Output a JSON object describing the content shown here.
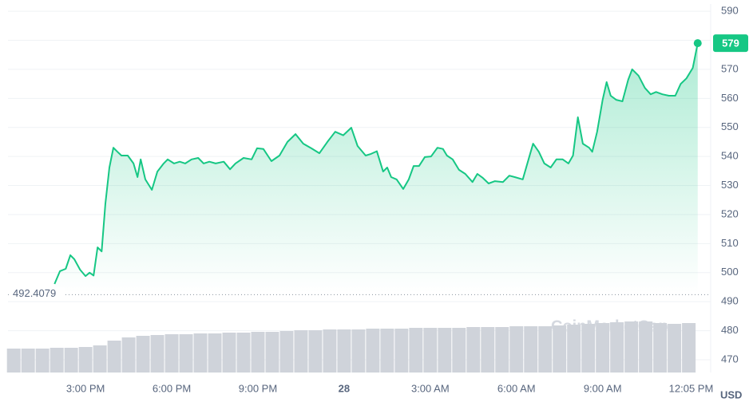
{
  "chart_data": {
    "type": "line",
    "x": [
      -10.08,
      -9.89,
      -9.69,
      -9.53,
      -9.39,
      -9.19,
      -9.0,
      -8.86,
      -8.72,
      -8.58,
      -8.44,
      -8.31,
      -8.17,
      -8.03,
      -7.89,
      -7.75,
      -7.53,
      -7.33,
      -7.19,
      -7.08,
      -6.92,
      -6.69,
      -6.5,
      -6.28,
      -6.14,
      -5.92,
      -5.72,
      -5.53,
      -5.31,
      -5.08,
      -4.89,
      -4.69,
      -4.47,
      -4.19,
      -3.97,
      -3.78,
      -3.5,
      -3.22,
      -3.03,
      -2.81,
      -2.53,
      -2.25,
      -1.97,
      -1.69,
      -1.42,
      -1.14,
      -0.86,
      -0.58,
      -0.31,
      -0.03,
      0.25,
      0.47,
      0.75,
      0.94,
      1.14,
      1.36,
      1.5,
      1.64,
      1.83,
      2.06,
      2.25,
      2.42,
      2.61,
      2.81,
      3.03,
      3.25,
      3.44,
      3.58,
      3.78,
      4.0,
      4.22,
      4.47,
      4.64,
      4.83,
      5.03,
      5.25,
      5.53,
      5.75,
      5.94,
      6.22,
      6.42,
      6.58,
      6.78,
      6.97,
      7.19,
      7.39,
      7.61,
      7.81,
      7.97,
      8.14,
      8.31,
      8.53,
      8.64,
      8.81,
      9.0,
      9.14,
      9.28,
      9.47,
      9.69,
      9.89,
      10.03,
      10.25,
      10.47,
      10.67,
      10.86,
      11.08,
      11.31,
      11.53,
      11.72,
      11.92,
      12.14,
      12.31
    ],
    "series": [
      {
        "color": "#16c784",
        "values": [
          496.1,
          500.5,
          501.3,
          506,
          504.6,
          501,
          498.8,
          500,
          499,
          508.7,
          507.3,
          523.8,
          536.2,
          543,
          541.6,
          540.3,
          540.3,
          537.6,
          532.9,
          539,
          532.1,
          528.5,
          534.8,
          537.6,
          539,
          537.6,
          538.2,
          537.6,
          539,
          539.5,
          537.6,
          538.2,
          537.6,
          538.2,
          535.6,
          537.6,
          539.5,
          539,
          542.8,
          542.6,
          538.4,
          540.3,
          545,
          547.7,
          544.4,
          542.8,
          541.1,
          545,
          548.5,
          547.3,
          549.9,
          543.6,
          540.3,
          540.9,
          541.8,
          534.8,
          536.2,
          532.9,
          532.1,
          528.8,
          532.1,
          536.7,
          536.7,
          539.8,
          540,
          543,
          542.6,
          540.3,
          539,
          535.4,
          534,
          531.2,
          534,
          532.6,
          530.7,
          531.5,
          531.2,
          533.4,
          532.9,
          532.1,
          539,
          544.4,
          541.6,
          537.6,
          536.2,
          539,
          539,
          537.6,
          540.3,
          553.5,
          544.4,
          543,
          541.6,
          548.5,
          559.5,
          565.6,
          560.9,
          559.5,
          559,
          566.4,
          570,
          567.8,
          563.6,
          561.4,
          562.2,
          561.4,
          560.9,
          560.9,
          565,
          566.9,
          570.5,
          579
        ]
      }
    ],
    "xlim": [
      -11.7,
      12.4
    ],
    "ylim": [
      465.6,
      592.5
    ],
    "xticks": [
      {
        "value": -9,
        "label": "3:00 PM"
      },
      {
        "value": -6,
        "label": "6:00 PM"
      },
      {
        "value": -3,
        "label": "9:00 PM"
      },
      {
        "value": 0,
        "label": "28"
      },
      {
        "value": 3,
        "label": "3:00 AM"
      },
      {
        "value": 6,
        "label": "6:00 AM"
      },
      {
        "value": 9,
        "label": "9:00 AM"
      },
      {
        "value": 12.08,
        "label": "12:05 PM"
      }
    ],
    "yticks": [
      470,
      480,
      490,
      500,
      510,
      520,
      530,
      540,
      550,
      560,
      570,
      580,
      590
    ],
    "grid": true,
    "reference_line": {
      "value": 492.4079
    },
    "y_unit": "USD",
    "watermark": "CoinMarketCap",
    "volume": {
      "type": "bar",
      "color": "#cfd3da",
      "ylim": [
        0,
        100
      ],
      "x": [
        -11.5,
        -11,
        -10.5,
        -10,
        -9.5,
        -9,
        -8.5,
        -8,
        -7.5,
        -7,
        -6.5,
        -6,
        -5.5,
        -5,
        -4.5,
        -4,
        -3.5,
        -3,
        -2.5,
        -2,
        -1.5,
        -1,
        -0.5,
        0,
        0.5,
        1,
        1.5,
        2,
        2.5,
        3,
        3.5,
        4,
        4.5,
        5,
        5.5,
        6,
        6.5,
        7,
        7.5,
        8,
        8.5,
        9,
        9.5,
        10,
        10.5,
        11,
        11.5,
        12
      ],
      "values": [
        30,
        30,
        30,
        31,
        31,
        32,
        34,
        40,
        44,
        46,
        47,
        48,
        48,
        49,
        49,
        50,
        50,
        51,
        51,
        52,
        53,
        53,
        54,
        54,
        54,
        55,
        55,
        55,
        56,
        56,
        56,
        56,
        57,
        57,
        57,
        58,
        58,
        58,
        59,
        60,
        61,
        62,
        63,
        64,
        64,
        62,
        61,
        62
      ]
    }
  }
}
